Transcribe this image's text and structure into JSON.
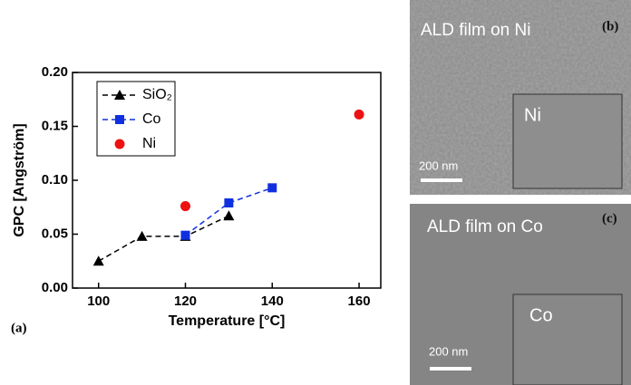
{
  "chart_data": {
    "type": "line",
    "x_label": "Temperature [°C]",
    "y_label": "GPC [Angström]",
    "panel_label": "(a)",
    "xlim": [
      94,
      165
    ],
    "xticks": [
      100,
      120,
      140,
      160
    ],
    "ylim": [
      0,
      0.2
    ],
    "yticks": [
      {
        "value": 0,
        "label": "0.00"
      },
      {
        "value": 0.05,
        "label": "0.05"
      },
      {
        "value": 0.1,
        "label": "0.10"
      },
      {
        "value": 0.15,
        "label": "0.15"
      },
      {
        "value": 0.2,
        "label": "0.20"
      }
    ],
    "legend": "upper left",
    "series": [
      {
        "name": "SiO₂",
        "color": "#000000",
        "marker": "triangle",
        "dashed": true,
        "x": [
          100,
          110,
          120,
          130
        ],
        "values": [
          0.025,
          0.048,
          0.048,
          0.067
        ]
      },
      {
        "name": "Co",
        "color": "#1030e0",
        "marker": "square",
        "dashed": true,
        "x": [
          120,
          130,
          140
        ],
        "values": [
          0.049,
          0.079,
          0.093
        ]
      },
      {
        "name": "Ni",
        "color": "#ee1111",
        "marker": "circle",
        "dashed": false,
        "x": [
          120,
          160
        ],
        "values": [
          0.076,
          0.161
        ]
      }
    ]
  },
  "panels": [
    {
      "caption": "ALD film on Ni",
      "label": "(b)",
      "inset": "Ni",
      "scale": "200 nm"
    },
    {
      "caption": "ALD film on Co",
      "label": "(c)",
      "inset": "Co",
      "scale": "200 nm"
    }
  ]
}
